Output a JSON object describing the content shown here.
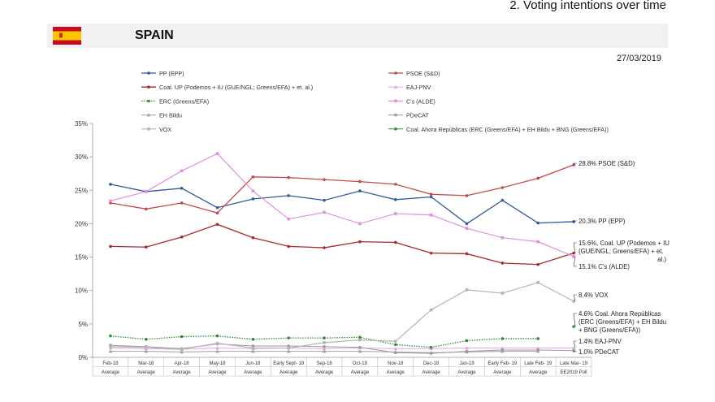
{
  "header": {
    "title": "2. Voting intentions over time"
  },
  "country": {
    "name": "SPAIN",
    "flag": "spain-flag"
  },
  "date": "27/03/2019",
  "colors": {
    "bar_bg": "#f1f1f1",
    "flag_red": "#c60b1e",
    "flag_yellow": "#ffc400"
  },
  "chart_data": {
    "type": "line",
    "title": "",
    "xlabel": "",
    "ylabel": "",
    "ylim": [
      0,
      35
    ],
    "yticks": [
      0,
      5,
      10,
      15,
      20,
      25,
      30,
      35
    ],
    "ytick_labels": [
      "0%",
      "5%",
      "10%",
      "15%",
      "20%",
      "25%",
      "30%",
      "35%"
    ],
    "grid": false,
    "x_top": [
      "Feb-18",
      "Mar-18",
      "Apr-18",
      "May-18",
      "Jun-18",
      "Early Sept- 18",
      "Sep-18",
      "Oct-18",
      "Nov-18",
      "Dec-18",
      "Jan-19",
      "Early Feb- 19",
      "Late Feb- 19",
      "Late Mar- 19"
    ],
    "x_bottom": [
      "Average",
      "Average",
      "Average",
      "Average",
      "Average",
      "Average",
      "Average",
      "Average",
      "Average",
      "Average",
      "Average",
      "Average",
      "Average",
      "EE2019 Poll"
    ],
    "legend_placement": "top",
    "series": [
      {
        "name": "PP (EPP)",
        "color": "#2e5b9a",
        "marker": "circle",
        "dash": "solid",
        "width": 1.3,
        "values": [
          25.9,
          24.8,
          25.3,
          22.4,
          23.7,
          24.2,
          23.5,
          24.9,
          23.6,
          24.0,
          20.0,
          23.5,
          20.1,
          20.3
        ],
        "end_label": "20.3% PP (EPP)"
      },
      {
        "name": "PSOE (S&D)",
        "color": "#c04a4a",
        "marker": "circle",
        "dash": "solid",
        "width": 1.3,
        "values": [
          23.1,
          22.2,
          23.1,
          21.6,
          27.0,
          26.9,
          26.6,
          26.3,
          25.9,
          24.4,
          24.2,
          25.4,
          26.8,
          28.8
        ],
        "end_label": "28.8% PSOE (S&D)"
      },
      {
        "name": "Coal. UP (Podemos + IU (GUE/NGL; Greens/EFA) + et. al.)",
        "color": "#a52a2a",
        "marker": "circle",
        "dash": "solid",
        "width": 1.3,
        "values": [
          16.6,
          16.5,
          18.0,
          19.9,
          17.9,
          16.6,
          16.4,
          17.3,
          17.2,
          15.6,
          15.5,
          14.1,
          13.9,
          15.6
        ],
        "end_label": "15.6%, Coal. UP (Podemos + IU (GUE/NGL; Greens/EFA) + et. al.)",
        "end_label_lines": [
          "15.6%, Coal. UP (Podemos + IU",
          "(GUE/NGL; Greens/EFA) + et.",
          "al.)"
        ]
      },
      {
        "name": "EAJ-PNV",
        "color": "#e3a6e3",
        "marker": "triangle",
        "dash": "solid",
        "width": 1.0,
        "values": [
          1.4,
          1.3,
          1.2,
          1.4,
          1.3,
          1.4,
          1.3,
          1.4,
          1.3,
          1.3,
          1.4,
          1.4,
          1.4,
          1.4
        ],
        "end_label": "1.4% EAJ-PNV"
      },
      {
        "name": "ERC (Greens/EFA)",
        "color": "#2f8a3a",
        "marker": "circle",
        "dash": "dotted",
        "width": 1.3,
        "values": [
          3.2,
          2.7,
          3.1,
          3.2,
          2.7,
          2.9,
          2.9,
          3.0,
          1.9,
          1.5,
          2.5,
          2.8,
          2.8,
          null
        ],
        "end_label": ""
      },
      {
        "name": "C's (ALDE)",
        "color": "#e08ee0",
        "marker": "square",
        "dash": "solid",
        "width": 1.2,
        "values": [
          23.4,
          24.8,
          27.9,
          30.5,
          24.9,
          20.7,
          21.7,
          20.0,
          21.5,
          21.3,
          19.3,
          17.9,
          17.3,
          15.1
        ],
        "end_label": "15.1% C's (ALDE)"
      },
      {
        "name": "EH Bildu",
        "color": "#a0a0a0",
        "marker": "triangle",
        "dash": "solid",
        "width": 1.0,
        "values": [
          0.9,
          0.9,
          0.8,
          0.9,
          0.9,
          0.9,
          0.9,
          0.9,
          0.8,
          0.7,
          0.8,
          0.9,
          0.9,
          null
        ],
        "end_label": ""
      },
      {
        "name": "PDeCAT",
        "color": "#9a9a9a",
        "marker": "circle",
        "dash": "solid",
        "width": 1.0,
        "values": [
          1.8,
          1.6,
          1.3,
          2.0,
          1.7,
          1.7,
          1.6,
          1.5,
          0.7,
          0.6,
          0.9,
          1.1,
          1.1,
          1.0
        ],
        "end_label": "1.0% PDeCAT"
      },
      {
        "name": "VOX",
        "color": "#b5b5b5",
        "marker": "square",
        "dash": "solid",
        "width": 1.2,
        "values": [
          1.6,
          1.5,
          1.2,
          2.1,
          1.4,
          1.4,
          2.2,
          2.6,
          2.4,
          7.1,
          10.1,
          9.6,
          11.2,
          8.4
        ],
        "end_label": "8.4% VOX"
      },
      {
        "name": "Coal. Ahora Repúblicas (ERC (Greens/EFA) + EH Bildu + BNG (Greens/EFA))",
        "color": "#2f8a3a",
        "marker": "circle",
        "dash": "solid",
        "width": 1.0,
        "values": [
          null,
          null,
          null,
          null,
          null,
          null,
          null,
          null,
          null,
          null,
          null,
          null,
          null,
          4.6
        ],
        "end_label": "4.6% Coal. Ahora Repúblicas (ERC (Greens/EFA) + EH Bildu + BNG (Greens/EFA))",
        "end_label_lines": [
          "4.6% Coal. Ahora Repúblicas",
          "(ERC (Greens/EFA) + EH Bildu",
          "+ BNG (Greens/EFA))"
        ]
      }
    ]
  }
}
